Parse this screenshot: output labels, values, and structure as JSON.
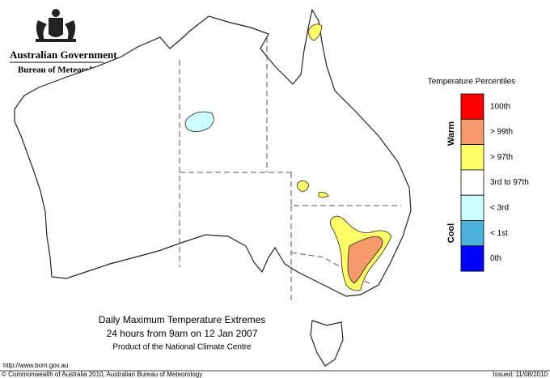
{
  "header": {
    "government": "Australian Government",
    "bureau": "Bureau of Meteorology"
  },
  "legend": {
    "title": "Temperature Percentiles",
    "warm": "Warm",
    "cool": "Cool",
    "items": [
      {
        "label": "100th",
        "color": "#ff0000"
      },
      {
        "label": "> 99th",
        "color": "#f59a6a"
      },
      {
        "label": "> 97th",
        "color": "#ffff66"
      },
      {
        "label": "3rd to 97th",
        "color": "#ffffff"
      },
      {
        "label": "< 3rd",
        "color": "#ccffff"
      },
      {
        "label": "< 1st",
        "color": "#4cb2dc"
      },
      {
        "label": "0th",
        "color": "#0000ff"
      }
    ]
  },
  "map_title": {
    "line1": "Daily Maximum Temperature Extremes",
    "line2": "24 hours from 9am on 12 Jan 2007",
    "line3": "Product of the National Climate Centre"
  },
  "footer": {
    "url": "http://www.bom.gov.au",
    "copyright": "© Commonwealth of Australia 2010, Australian Bureau of Meteorology",
    "issued": "Issued: 11/08/2010"
  }
}
